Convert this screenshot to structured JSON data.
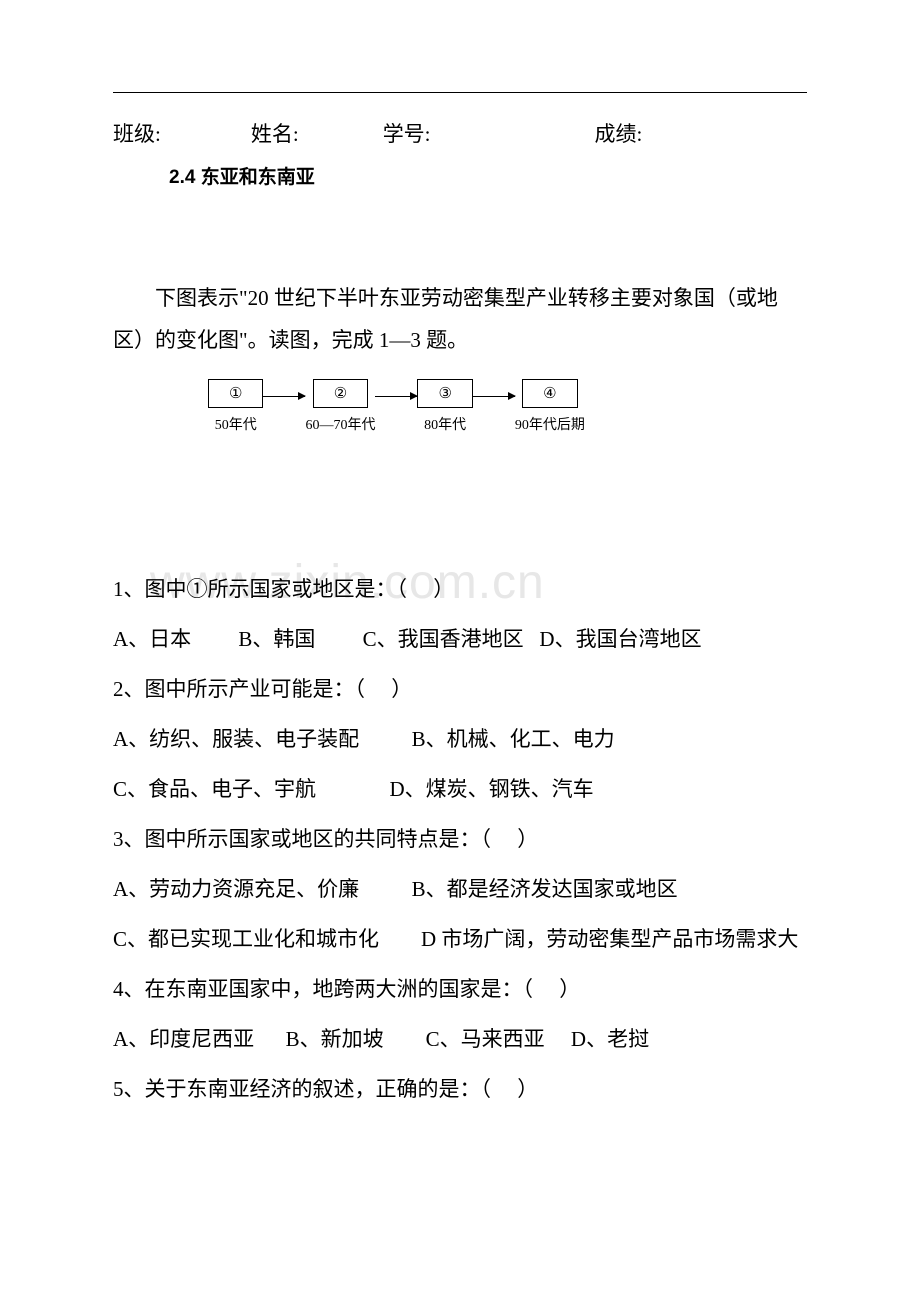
{
  "header": {
    "class_label": "班级:",
    "name_label": "姓名:",
    "id_label": "学号:",
    "score_label": "成绩:"
  },
  "section_title": "2.4 东亚和东南亚",
  "intro": "下图表示\"20 世纪下半叶东亚劳动密集型产业转移主要对象国（或地区）的变化图\"。读图，完成 1—3 题。",
  "diagram": {
    "boxes": [
      "①",
      "②",
      "③",
      "④"
    ],
    "captions": [
      "50年代",
      "60—70年代",
      "80年代",
      "90年代后期"
    ]
  },
  "questions": {
    "q1": "1、图中①所示国家或地区是：（     ）",
    "q1_opts": "A、日本         B、韩国         C、我国香港地区   D、我国台湾地区",
    "q2": "2、图中所示产业可能是：（     ）",
    "q2_a": "A、纺织、服装、电子装配          B、机械、化工、电力",
    "q2_c": "C、食品、电子、宇航              D、煤炭、钢铁、汽车",
    "q3": "3、图中所示国家或地区的共同特点是：（     ）",
    "q3_a": "A、劳动力资源充足、价廉          B、都是经济发达国家或地区",
    "q3_c": "C、都已实现工业化和城市化        D 市场广阔，劳动密集型产品市场需求大",
    "q4": "4、在东南亚国家中，地跨两大洲的国家是：（     ）",
    "q4_opts": "A、印度尼西亚      B、新加坡        C、马来西亚     D、老挝",
    "q5": "5、关于东南亚经济的叙述，正确的是：（     ）"
  },
  "watermark": "www.zixin.com.cn",
  "colors": {
    "text": "#000000",
    "bg": "#ffffff",
    "watermark": "#e7e7e7"
  }
}
